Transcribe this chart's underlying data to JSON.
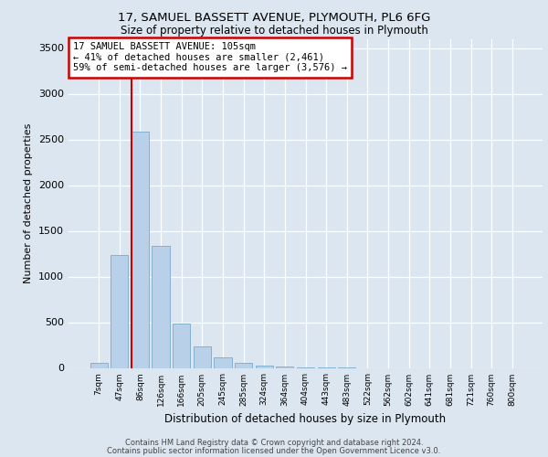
{
  "title1": "17, SAMUEL BASSETT AVENUE, PLYMOUTH, PL6 6FG",
  "title2": "Size of property relative to detached houses in Plymouth",
  "xlabel": "Distribution of detached houses by size in Plymouth",
  "ylabel": "Number of detached properties",
  "categories": [
    "7sqm",
    "47sqm",
    "86sqm",
    "126sqm",
    "166sqm",
    "205sqm",
    "245sqm",
    "285sqm",
    "324sqm",
    "364sqm",
    "404sqm",
    "443sqm",
    "483sqm",
    "522sqm",
    "562sqm",
    "602sqm",
    "641sqm",
    "681sqm",
    "721sqm",
    "760sqm",
    "800sqm"
  ],
  "values": [
    55,
    1240,
    2590,
    1340,
    490,
    240,
    115,
    55,
    25,
    20,
    10,
    10,
    5,
    0,
    0,
    0,
    0,
    0,
    0,
    0,
    0
  ],
  "bar_color": "#b8d0e8",
  "bar_edge_color": "#7aaaca",
  "vline_color": "#cc0000",
  "vline_x": 1.6,
  "annotation_line1": "17 SAMUEL BASSETT AVENUE: 105sqm",
  "annotation_line2": "← 41% of detached houses are smaller (2,461)",
  "annotation_line3": "59% of semi-detached houses are larger (3,576) →",
  "annotation_box_facecolor": "#ffffff",
  "annotation_box_edgecolor": "#cc0000",
  "ylim": [
    0,
    3600
  ],
  "yticks": [
    0,
    500,
    1000,
    1500,
    2000,
    2500,
    3000,
    3500
  ],
  "background_color": "#dce6f0",
  "grid_color": "#ffffff",
  "footer1": "Contains HM Land Registry data © Crown copyright and database right 2024.",
  "footer2": "Contains public sector information licensed under the Open Government Licence v3.0."
}
